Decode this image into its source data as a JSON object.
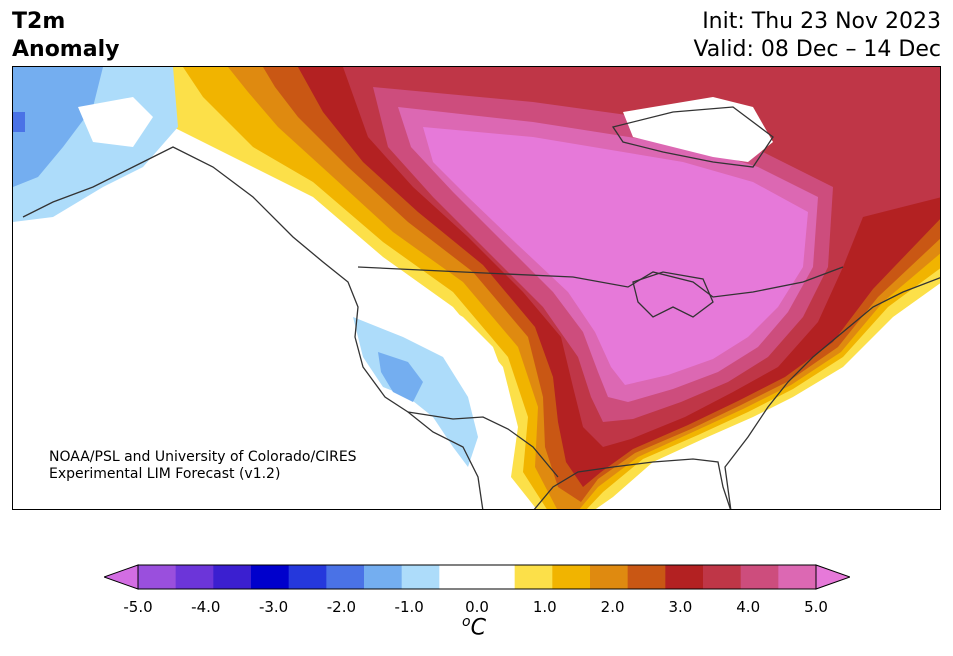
{
  "header": {
    "variable": "T2m",
    "quantity": "Anomaly",
    "init_label": "Init: Thu 23 Nov 2023",
    "valid_label": "Valid: 08 Dec – 14 Dec"
  },
  "credit": {
    "line1": "NOAA/PSL and University of Colorado/CIRES",
    "line2": "Experimental LIM Forecast (v1.2)"
  },
  "colorbar": {
    "unit_base": "C",
    "unit_superscript": "o",
    "colors": [
      "#d36de3",
      "#9a4fdd",
      "#6c35d9",
      "#3b1fd0",
      "#0000cc",
      "#2538dc",
      "#4a72e6",
      "#74aef0",
      "#addcfa",
      "#ffffff",
      "#ffffff",
      "#fce049",
      "#f1b400",
      "#df8a10",
      "#c95714",
      "#b32122",
      "#bf3647",
      "#cd4d7d",
      "#dc68b3",
      "#e679d9"
    ],
    "ticks": [
      "-5.0",
      "-4.0",
      "-3.0",
      "-2.0",
      "-1.0",
      "0.0",
      "1.0",
      "2.0",
      "3.0",
      "4.0",
      "5.0"
    ]
  },
  "map": {
    "region": "North America",
    "field_colors": {
      "pink": "#e679d9",
      "magenta": "#dc68b3",
      "rose": "#cd4d7d",
      "crimson": "#bf3647",
      "red": "#b32122",
      "rust": "#c95714",
      "orange": "#df8a10",
      "amber": "#f1b400",
      "yellow": "#fce049",
      "light_blue": "#addcfa",
      "blue": "#74aef0",
      "mid_blue": "#4a72e6"
    }
  }
}
